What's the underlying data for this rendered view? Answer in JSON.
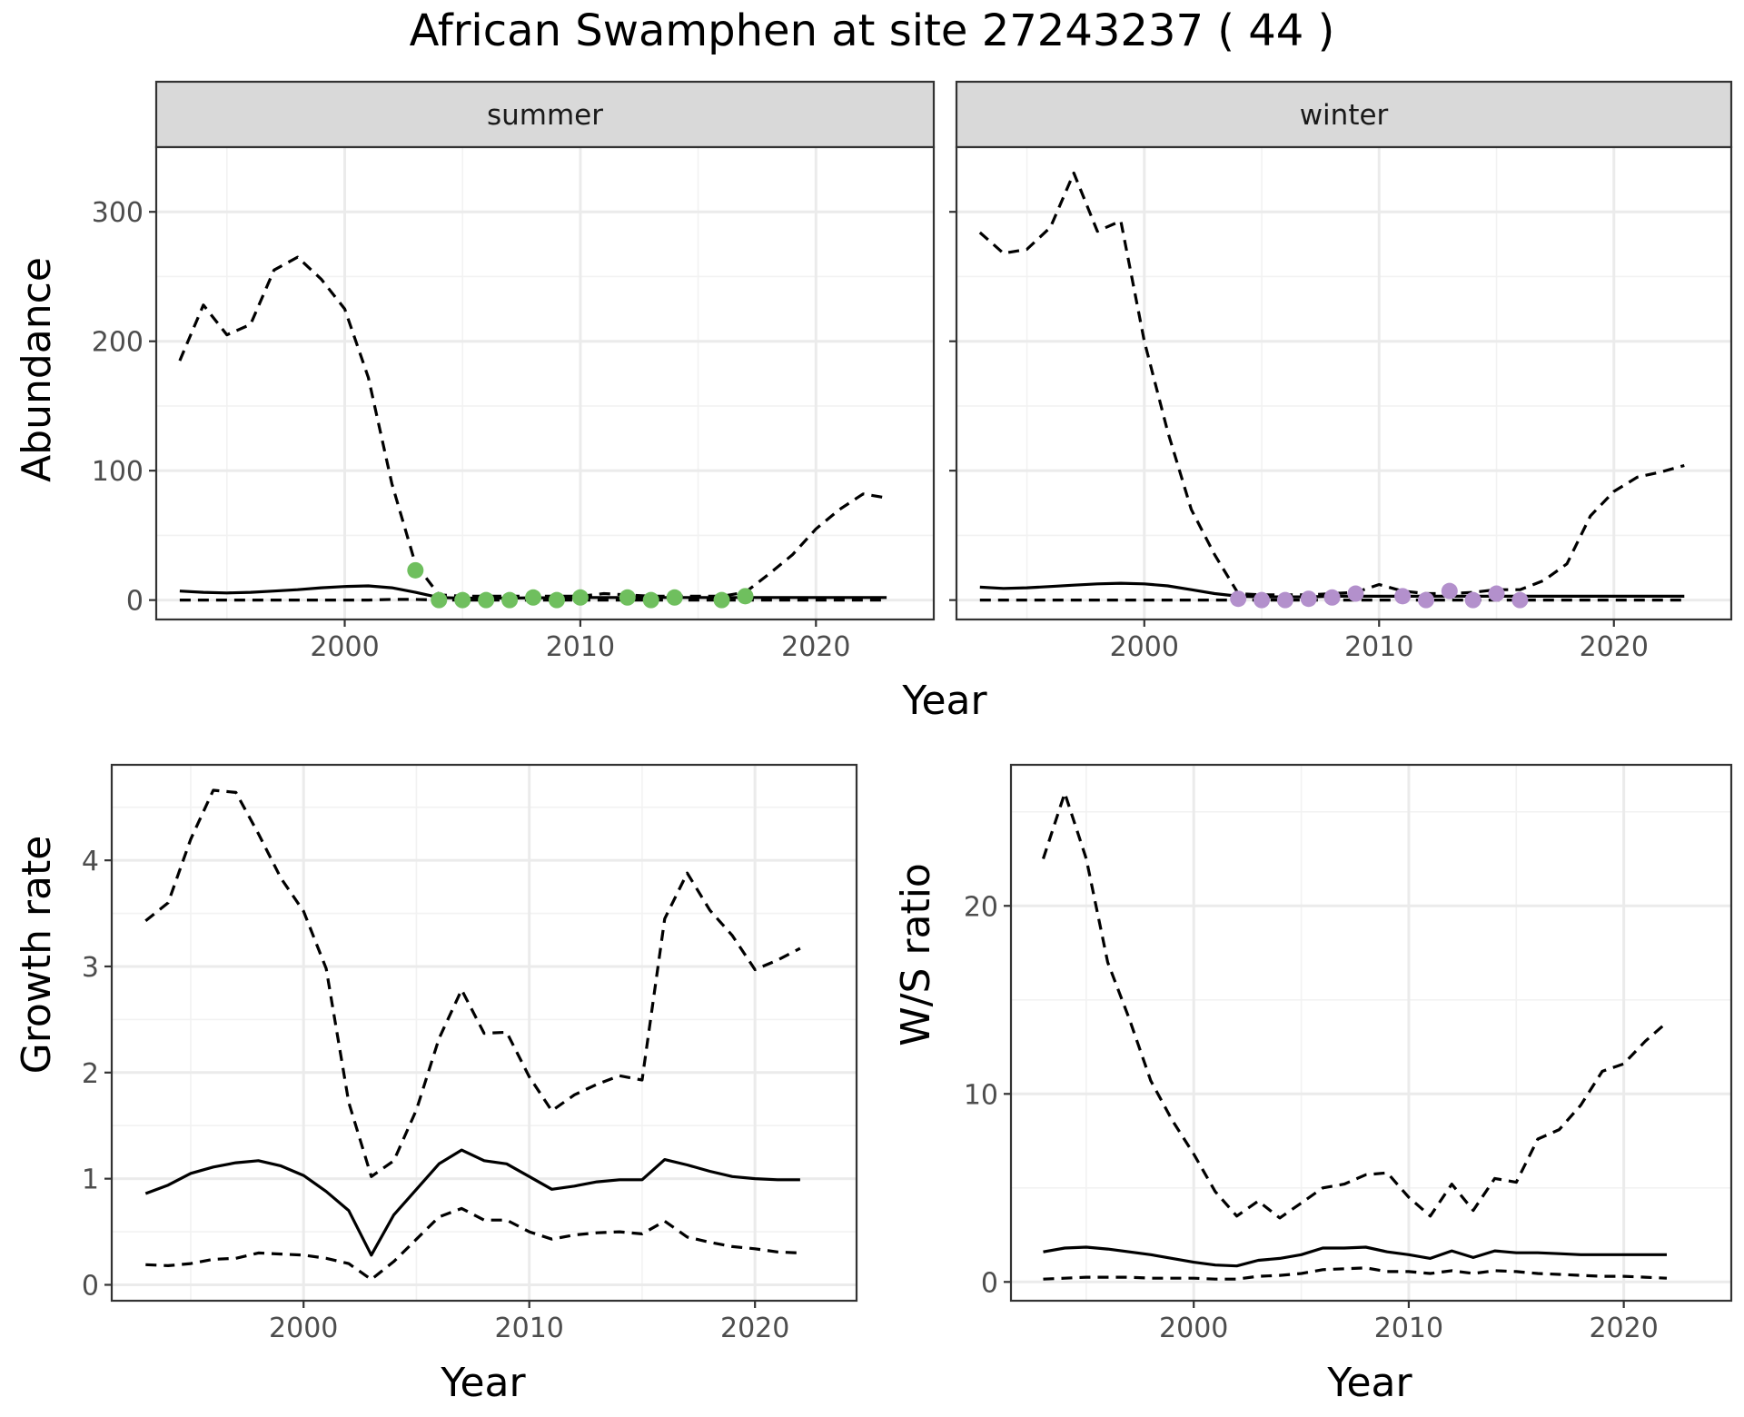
{
  "title": "African Swamphen at site 27243237 ( 44 )",
  "colors": {
    "summer_points": "#6fbf5e",
    "winter_points": "#b390cc",
    "line": "#000000",
    "strip": "#d9d9d9"
  },
  "chart_data": [
    {
      "type": "line",
      "title": "",
      "facet_strip": "summer",
      "xlabel": "Year",
      "ylabel": "Abundance",
      "xlim": [
        1992,
        2025
      ],
      "ylim": [
        -15,
        350
      ],
      "x_ticks": [
        2000,
        2010,
        2020
      ],
      "y_ticks": [
        0,
        100,
        200,
        300
      ],
      "grid": true,
      "series": [
        {
          "style": "solid",
          "x": [
            1993,
            1994,
            1995,
            1996,
            1997,
            1998,
            1999,
            2000,
            2001,
            2002,
            2003,
            2004,
            2005,
            2006,
            2007,
            2008,
            2009,
            2010,
            2011,
            2012,
            2013,
            2014,
            2015,
            2016,
            2017,
            2018,
            2019,
            2020,
            2021,
            2022,
            2023
          ],
          "y": [
            7,
            6,
            5.5,
            6,
            7,
            8,
            9.5,
            10.5,
            11,
            9.5,
            6,
            2,
            1.5,
            1.5,
            1.5,
            1.8,
            1.8,
            2,
            2,
            2,
            2,
            2,
            2,
            2,
            2,
            2,
            2,
            2,
            2,
            2,
            2
          ]
        },
        {
          "style": "dashed",
          "x": [
            1993,
            1994,
            1995,
            1996,
            1997,
            1998,
            1999,
            2000,
            2001,
            2002,
            2003,
            2004,
            2005,
            2006,
            2007,
            2008,
            2009,
            2010,
            2011,
            2012,
            2013,
            2014,
            2015,
            2016,
            2017,
            2018,
            2019,
            2020,
            2021,
            2022,
            2023
          ],
          "y": [
            185,
            228,
            205,
            213,
            255,
            265,
            248,
            225,
            172,
            90,
            28,
            4,
            3,
            3,
            3,
            3,
            3,
            3,
            5,
            4,
            3,
            3,
            3,
            3,
            6,
            20,
            35,
            55,
            70,
            82,
            79
          ]
        },
        {
          "style": "dashed",
          "x": [
            1993,
            1994,
            1995,
            1996,
            1997,
            1998,
            1999,
            2000,
            2001,
            2002,
            2003,
            2004,
            2005,
            2006,
            2007,
            2008,
            2009,
            2010,
            2011,
            2012,
            2013,
            2014,
            2015,
            2016,
            2017,
            2018,
            2019,
            2020,
            2021,
            2022,
            2023
          ],
          "y": [
            0,
            0,
            0,
            0,
            0,
            0,
            0,
            0,
            0,
            0.5,
            0.5,
            0,
            0,
            0,
            0,
            0,
            0,
            0,
            0,
            0,
            0,
            0,
            0,
            0,
            0,
            0,
            0,
            0,
            0,
            0,
            0
          ]
        }
      ],
      "points": {
        "color": "summer",
        "x": [
          2003,
          2004,
          2005,
          2006,
          2007,
          2008,
          2009,
          2010,
          2012,
          2013,
          2014,
          2016,
          2017
        ],
        "y": [
          23,
          0,
          0,
          0,
          0,
          2,
          0,
          2,
          2,
          0,
          2,
          0,
          3
        ]
      }
    },
    {
      "type": "line",
      "title": "",
      "facet_strip": "winter",
      "xlabel": "Year",
      "ylabel": "",
      "xlim": [
        1992,
        2025
      ],
      "ylim": [
        -15,
        350
      ],
      "x_ticks": [
        2000,
        2010,
        2020
      ],
      "y_ticks": [
        0,
        100,
        200,
        300
      ],
      "grid": true,
      "series": [
        {
          "style": "solid",
          "x": [
            1993,
            1994,
            1995,
            1996,
            1997,
            1998,
            1999,
            2000,
            2001,
            2002,
            2003,
            2004,
            2005,
            2006,
            2007,
            2008,
            2009,
            2010,
            2011,
            2012,
            2013,
            2014,
            2015,
            2016,
            2017,
            2018,
            2019,
            2020,
            2021,
            2022,
            2023
          ],
          "y": [
            10,
            9,
            9.5,
            10.5,
            11.5,
            12.5,
            13,
            12.5,
            11,
            8,
            5,
            3,
            2.5,
            2.5,
            2.5,
            3,
            3,
            3,
            3,
            3,
            3,
            3,
            3,
            3,
            3,
            3,
            3,
            3,
            3,
            3,
            3
          ]
        },
        {
          "style": "dashed",
          "x": [
            1993,
            1994,
            1995,
            1996,
            1997,
            1998,
            1999,
            2000,
            2001,
            2002,
            2003,
            2004,
            2005,
            2006,
            2007,
            2008,
            2009,
            2010,
            2011,
            2012,
            2013,
            2014,
            2015,
            2016,
            2017,
            2018,
            2019,
            2020,
            2021,
            2022,
            2023
          ],
          "y": [
            284,
            268,
            271,
            288,
            330,
            285,
            293,
            200,
            130,
            70,
            35,
            5,
            4,
            4,
            4,
            5,
            6,
            12,
            7,
            5,
            5,
            6,
            8,
            8,
            15,
            28,
            65,
            84,
            95,
            99,
            104
          ]
        },
        {
          "style": "dashed",
          "x": [
            1993,
            1994,
            1995,
            1996,
            1997,
            1998,
            1999,
            2000,
            2001,
            2002,
            2003,
            2004,
            2005,
            2006,
            2007,
            2008,
            2009,
            2010,
            2011,
            2012,
            2013,
            2014,
            2015,
            2016,
            2017,
            2018,
            2019,
            2020,
            2021,
            2022,
            2023
          ],
          "y": [
            0,
            0,
            0,
            0,
            0,
            0,
            0,
            0,
            0,
            0,
            0,
            0,
            0,
            0,
            0,
            0,
            0,
            0,
            0,
            0,
            0,
            0,
            0,
            0,
            0,
            0,
            0,
            0,
            0,
            0,
            0
          ]
        }
      ],
      "points": {
        "color": "winter",
        "x": [
          2004,
          2005,
          2006,
          2007,
          2008,
          2009,
          2011,
          2012,
          2013,
          2014,
          2015,
          2016
        ],
        "y": [
          1,
          0,
          0,
          1,
          2,
          5,
          3,
          0,
          7,
          0,
          5,
          0
        ]
      }
    },
    {
      "type": "line",
      "title": "",
      "xlabel": "Year",
      "ylabel": "Growth rate",
      "xlim": [
        1991.5,
        2024.5
      ],
      "ylim": [
        -0.15,
        4.9
      ],
      "x_ticks": [
        2000,
        2010,
        2020
      ],
      "y_ticks": [
        0,
        1,
        2,
        3,
        4
      ],
      "grid": true,
      "series": [
        {
          "style": "solid",
          "x": [
            1993,
            1994,
            1995,
            1996,
            1997,
            1998,
            1999,
            2000,
            2001,
            2002,
            2003,
            2004,
            2005,
            2006,
            2007,
            2008,
            2009,
            2010,
            2011,
            2012,
            2013,
            2014,
            2015,
            2016,
            2017,
            2018,
            2019,
            2020,
            2021,
            2022
          ],
          "y": [
            0.86,
            0.94,
            1.05,
            1.11,
            1.15,
            1.17,
            1.12,
            1.03,
            0.88,
            0.7,
            0.28,
            0.66,
            0.9,
            1.14,
            1.27,
            1.17,
            1.14,
            1.02,
            0.9,
            0.93,
            0.97,
            0.99,
            0.99,
            1.18,
            1.13,
            1.07,
            1.02,
            1.0,
            0.99,
            0.99
          ]
        },
        {
          "style": "dashed",
          "x": [
            1993,
            1994,
            1995,
            1996,
            1997,
            1998,
            1999,
            2000,
            2001,
            2002,
            2003,
            2004,
            2005,
            2006,
            2007,
            2008,
            2009,
            2010,
            2011,
            2012,
            2013,
            2014,
            2015,
            2016,
            2017,
            2018,
            2019,
            2020,
            2021,
            2022
          ],
          "y": [
            3.43,
            3.6,
            4.2,
            4.66,
            4.64,
            4.25,
            3.83,
            3.52,
            2.98,
            1.72,
            1.02,
            1.17,
            1.65,
            2.32,
            2.78,
            2.37,
            2.38,
            1.96,
            1.64,
            1.79,
            1.89,
            1.97,
            1.93,
            3.45,
            3.88,
            3.53,
            3.29,
            2.97,
            3.06,
            3.17
          ]
        },
        {
          "style": "dashed",
          "x": [
            1993,
            1994,
            1995,
            1996,
            1997,
            1998,
            1999,
            2000,
            2001,
            2002,
            2003,
            2004,
            2005,
            2006,
            2007,
            2008,
            2009,
            2010,
            2011,
            2012,
            2013,
            2014,
            2015,
            2016,
            2017,
            2018,
            2019,
            2020,
            2021,
            2022
          ],
          "y": [
            0.19,
            0.18,
            0.2,
            0.24,
            0.25,
            0.3,
            0.29,
            0.28,
            0.25,
            0.2,
            0.05,
            0.22,
            0.43,
            0.64,
            0.72,
            0.61,
            0.61,
            0.5,
            0.43,
            0.47,
            0.49,
            0.5,
            0.48,
            0.6,
            0.45,
            0.4,
            0.36,
            0.34,
            0.31,
            0.3
          ]
        }
      ]
    },
    {
      "type": "line",
      "title": "",
      "xlabel": "Year",
      "ylabel": "W/S ratio",
      "xlim": [
        1991.5,
        2025
      ],
      "ylim": [
        -1,
        27.5
      ],
      "x_ticks": [
        2000,
        2010,
        2020
      ],
      "y_ticks": [
        0,
        10,
        20
      ],
      "grid": true,
      "series": [
        {
          "style": "solid",
          "x": [
            1993,
            1994,
            1995,
            1996,
            1997,
            1998,
            1999,
            2000,
            2001,
            2002,
            2003,
            2004,
            2005,
            2006,
            2007,
            2008,
            2009,
            2010,
            2011,
            2012,
            2013,
            2014,
            2015,
            2016,
            2017,
            2018,
            2019,
            2020,
            2021,
            2022
          ],
          "y": [
            1.6,
            1.8,
            1.85,
            1.75,
            1.6,
            1.45,
            1.25,
            1.05,
            0.9,
            0.85,
            1.15,
            1.25,
            1.45,
            1.8,
            1.8,
            1.85,
            1.6,
            1.45,
            1.25,
            1.65,
            1.3,
            1.65,
            1.55,
            1.55,
            1.5,
            1.45,
            1.45,
            1.45,
            1.45,
            1.45
          ]
        },
        {
          "style": "dashed",
          "x": [
            1993,
            1994,
            1995,
            1996,
            1997,
            1998,
            1999,
            2000,
            2001,
            2002,
            2003,
            2004,
            2005,
            2006,
            2007,
            2008,
            2009,
            2010,
            2011,
            2012,
            2013,
            2014,
            2015,
            2016,
            2017,
            2018,
            2019,
            2020,
            2021,
            2022
          ],
          "y": [
            22.5,
            26,
            22.5,
            17,
            14,
            10.7,
            8.6,
            6.8,
            4.8,
            3.5,
            4.3,
            3.4,
            4.2,
            5.0,
            5.2,
            5.7,
            5.8,
            4.5,
            3.5,
            5.2,
            3.8,
            5.5,
            5.3,
            7.6,
            8.1,
            9.4,
            11.2,
            11.6,
            12.8,
            13.8
          ]
        },
        {
          "style": "dashed",
          "x": [
            1993,
            1994,
            1995,
            1996,
            1997,
            1998,
            1999,
            2000,
            2001,
            2002,
            2003,
            2004,
            2005,
            2006,
            2007,
            2008,
            2009,
            2010,
            2011,
            2012,
            2013,
            2014,
            2015,
            2016,
            2017,
            2018,
            2019,
            2020,
            2021,
            2022
          ],
          "y": [
            0.15,
            0.2,
            0.25,
            0.25,
            0.25,
            0.2,
            0.2,
            0.2,
            0.15,
            0.15,
            0.3,
            0.35,
            0.45,
            0.65,
            0.7,
            0.75,
            0.55,
            0.55,
            0.45,
            0.6,
            0.45,
            0.6,
            0.55,
            0.45,
            0.4,
            0.35,
            0.3,
            0.3,
            0.25,
            0.2
          ]
        }
      ]
    }
  ]
}
